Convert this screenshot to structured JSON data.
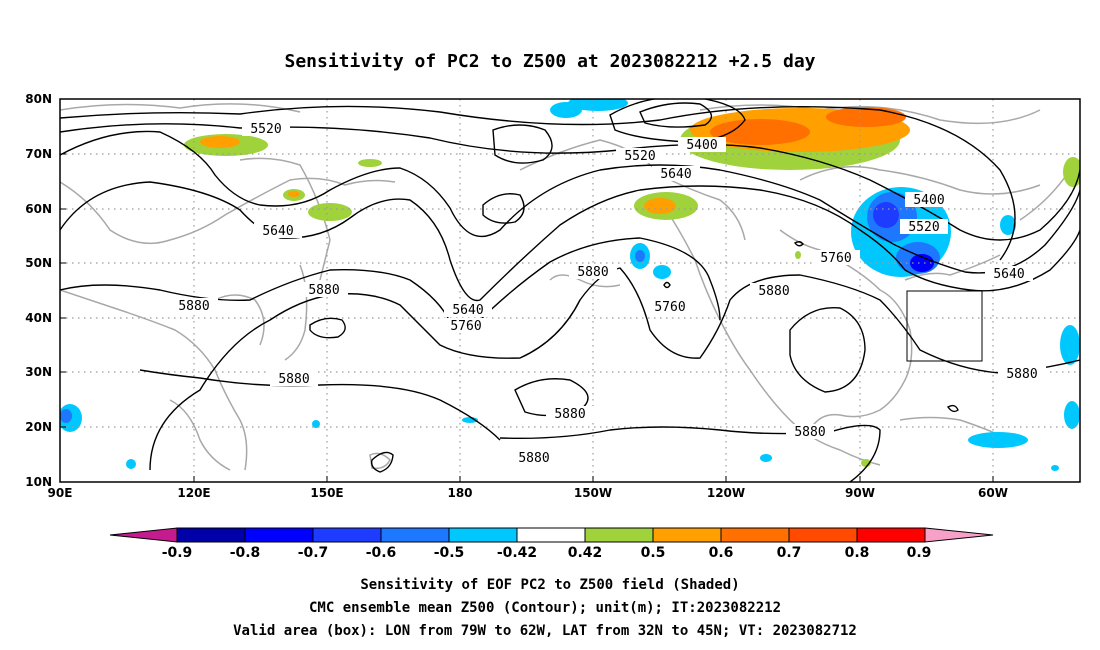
{
  "title": "Sensitivity of PC2 to Z500 at 2023082212 +2.5 day",
  "lat_labels": [
    "80N",
    "70N",
    "60N",
    "50N",
    "40N",
    "30N",
    "20N",
    "10N"
  ],
  "lon_labels": [
    "90E",
    "120E",
    "150E",
    "180",
    "150W",
    "120W",
    "90W",
    "60W"
  ],
  "contour_labels": [
    "5520",
    "5520",
    "5400",
    "5640",
    "5400",
    "5520",
    "5640",
    "5760",
    "5640",
    "5880",
    "5880",
    "5640",
    "5760",
    "5880",
    "5760",
    "5880",
    "5880",
    "5880",
    "5880",
    "5880"
  ],
  "colorbar": {
    "labels": [
      "-0.9",
      "-0.8",
      "-0.7",
      "-0.6",
      "-0.5",
      "-0.42",
      "0.42",
      "0.5",
      "0.6",
      "0.7",
      "0.8",
      "0.9"
    ],
    "colors": [
      "#c41b8f",
      "#0000a8",
      "#0000ff",
      "#1e3cff",
      "#1e78ff",
      "#00c8ff",
      "#ffffff",
      "#a0d23c",
      "#ffa000",
      "#ff7000",
      "#ff4a00",
      "#ff0000",
      "#f7a0c8"
    ]
  },
  "footer": {
    "line1": "Sensitivity of EOF PC2 to Z500 field (Shaded)",
    "line2": "CMC ensemble mean Z500 (Contour); unit(m); IT:2023082212",
    "line3": "Valid area (box): LON from 79W to 62W, LAT from 32N to 45N; VT: 2023082712"
  }
}
